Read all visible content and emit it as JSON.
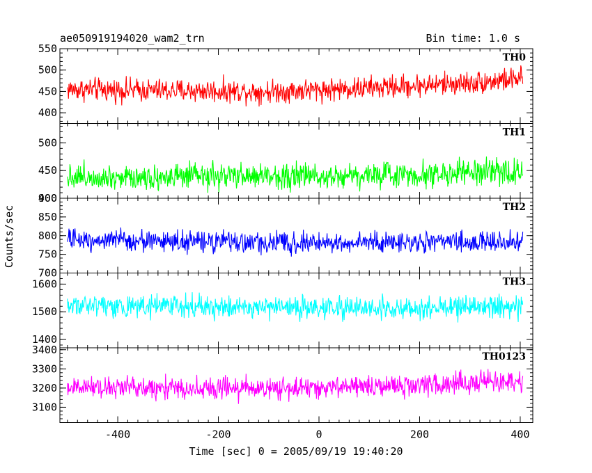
{
  "chart_data": {
    "type": "line",
    "title": "ae050919194020_wam2_trn",
    "subtitle": "Bin time: 1.0 s",
    "xlabel": "Time [sec] 0 = 2005/09/19 19:40:20",
    "ylabel": "Counts/sec",
    "xlim": [
      -515,
      425
    ],
    "x_range": [
      -500,
      405
    ],
    "x_ticks": [
      -400,
      -200,
      0,
      200,
      400
    ],
    "grid": false,
    "series": [
      {
        "name": "TH0",
        "color": "#ff0000",
        "ylim": [
          375,
          550
        ],
        "y_ticks": [
          400,
          450,
          500,
          550
        ],
        "x": [
          -500,
          -300,
          -100,
          100,
          300,
          405
        ],
        "values": [
          455,
          452,
          450,
          458,
          470,
          480
        ],
        "spread": 40
      },
      {
        "name": "TH1",
        "color": "#00ff00",
        "ylim": [
          400,
          535
        ],
        "y_ticks": [
          400,
          450,
          500
        ],
        "x": [
          -500,
          -300,
          -100,
          100,
          300,
          405
        ],
        "values": [
          440,
          438,
          440,
          442,
          445,
          448
        ],
        "spread": 35
      },
      {
        "name": "TH2",
        "color": "#0000ff",
        "ylim": [
          700,
          900
        ],
        "y_ticks": [
          700,
          750,
          800,
          850,
          900
        ],
        "x": [
          -500,
          -300,
          -100,
          100,
          300,
          405
        ],
        "values": [
          790,
          785,
          780,
          782,
          783,
          782
        ],
        "spread": 42
      },
      {
        "name": "TH3",
        "color": "#00ffff",
        "ylim": [
          1370,
          1640
        ],
        "y_ticks": [
          1400,
          1500,
          1600
        ],
        "x": [
          -500,
          -300,
          -100,
          100,
          300,
          405
        ],
        "values": [
          1525,
          1520,
          1515,
          1512,
          1518,
          1515
        ],
        "spread": 60
      },
      {
        "name": "TH0123",
        "color": "#ff00ff",
        "ylim": [
          3020,
          3410
        ],
        "y_ticks": [
          3100,
          3200,
          3300,
          3400
        ],
        "x": [
          -500,
          -300,
          -100,
          100,
          300,
          405
        ],
        "values": [
          3205,
          3200,
          3198,
          3205,
          3225,
          3235
        ],
        "spread": 85
      }
    ]
  }
}
